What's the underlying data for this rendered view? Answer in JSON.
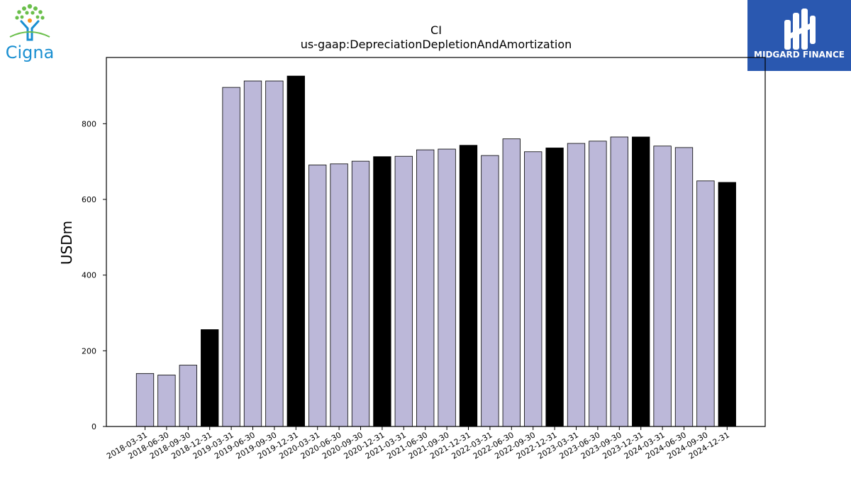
{
  "logos": {
    "left": {
      "name": "Cigna",
      "text": "Cigna",
      "colors": {
        "tree": "#6abf4b",
        "figure": "#1a8fd1",
        "accent": "#f7941d",
        "text": "#1a8fd1"
      }
    },
    "right": {
      "name": "Midgard Finance",
      "text": "MIDGARD FINANCE",
      "colors": {
        "background": "#2a58b0",
        "text": "#ffffff"
      }
    }
  },
  "chart_data": {
    "type": "bar",
    "title": "CI",
    "subtitle": "us-gaap:DepreciationDepletionAndAmortization",
    "xlabel": "",
    "ylabel": "USDm",
    "ylim": [
      0,
      975
    ],
    "yticks": [
      0,
      200,
      400,
      600,
      800
    ],
    "grid": false,
    "legend": "none",
    "colors": {
      "quarter": "#bcb8d9",
      "year_end": "#000000",
      "edge": "#000000"
    },
    "categories": [
      "2018-03-31",
      "2018-06-30",
      "2018-09-30",
      "2018-12-31",
      "2019-03-31",
      "2019-06-30",
      "2019-09-30",
      "2019-12-31",
      "2020-03-31",
      "2020-06-30",
      "2020-09-30",
      "2020-12-31",
      "2021-03-31",
      "2021-06-30",
      "2021-09-30",
      "2021-12-31",
      "2022-03-31",
      "2022-06-30",
      "2022-09-30",
      "2022-12-31",
      "2023-03-31",
      "2023-06-30",
      "2023-09-30",
      "2023-12-31",
      "2024-03-31",
      "2024-06-30",
      "2024-09-30",
      "2024-12-31"
    ],
    "values": [
      140,
      136,
      162,
      256,
      896,
      913,
      913,
      926,
      691,
      694,
      701,
      713,
      714,
      731,
      733,
      743,
      716,
      760,
      726,
      736,
      748,
      754,
      765,
      765,
      741,
      737,
      649,
      645
    ],
    "highlight": [
      false,
      false,
      false,
      true,
      false,
      false,
      false,
      true,
      false,
      false,
      false,
      true,
      false,
      false,
      false,
      true,
      false,
      false,
      false,
      true,
      false,
      false,
      false,
      true,
      false,
      false,
      false,
      true
    ]
  }
}
